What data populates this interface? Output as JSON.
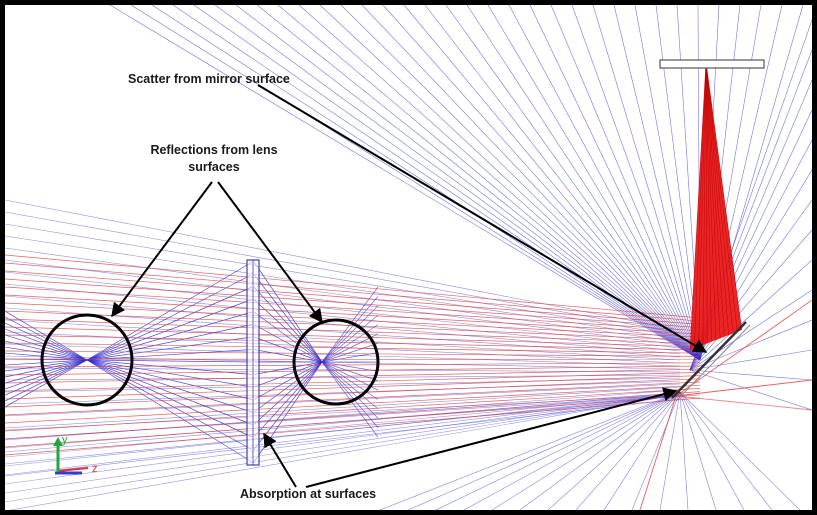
{
  "annotations": {
    "scatter": "Scatter from mirror surface",
    "reflections_line1": "Reflections from lens",
    "reflections_line2": "surfaces",
    "absorption": "Absorption at surfaces"
  },
  "axis_triad": {
    "vertical_axis": "y",
    "horizontal_axis": "z"
  },
  "colors": {
    "scatter_rays": "#2b2bd6",
    "source_rays": "#e23838",
    "focus_fill": "#e80f0f",
    "outline": "#000000",
    "lens": "#4040a0",
    "axis_y": "#1fa83a",
    "axis_z": "#e22f2f",
    "axis_x": "#2f3fd6"
  }
}
